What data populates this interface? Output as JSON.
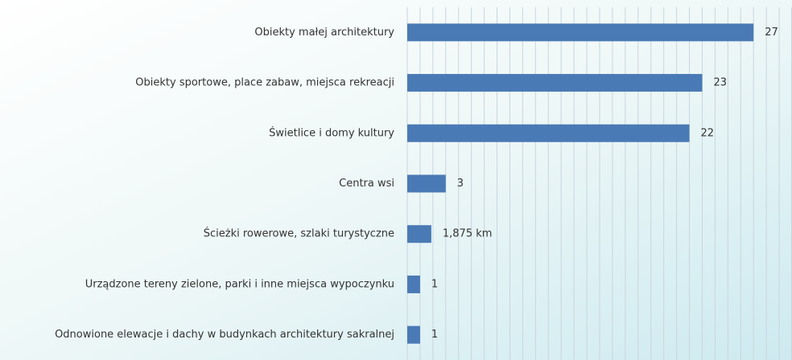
{
  "chart_data": {
    "type": "bar",
    "orientation": "horizontal",
    "categories": [
      "Obiekty małej architektury",
      "Obiekty sportowe, place zabaw, miejsca rekreacji",
      "Świetlice i domy kultury",
      "Centra wsi",
      "Ścieżki rowerowe, szlaki turystyczne",
      "Urządzone tereny zielone, parki i inne miejsca wypoczynku",
      "Odnowione elewacje i dachy w budynkach architektury sakralnej"
    ],
    "values": [
      27,
      23,
      22,
      3,
      1.875,
      1,
      1
    ],
    "value_labels": [
      "27",
      "23",
      "22",
      "3",
      "1,875 km",
      "1",
      "1"
    ],
    "color": "#4a7ab5",
    "xlim": [
      0,
      30
    ],
    "xticks": [
      0,
      1,
      2,
      3,
      4,
      5,
      6,
      7,
      8,
      9,
      10,
      11,
      12,
      13,
      14,
      15,
      16,
      17,
      18,
      19,
      20,
      21,
      22,
      23,
      24,
      25,
      26,
      27,
      28,
      29,
      30
    ],
    "grid": true
  }
}
